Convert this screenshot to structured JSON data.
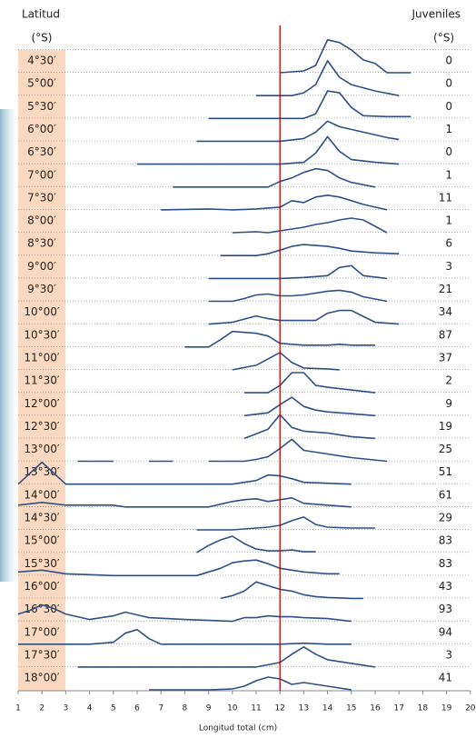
{
  "chart_data": {
    "type": "ridgeline",
    "header_left": "Latitud",
    "left_unit": "(°S)",
    "header_right": "Juveniles",
    "right_unit": "(°S)",
    "xlabel": "Longitud total (cm)",
    "xlim": [
      1,
      20
    ],
    "xticks": [
      1,
      2,
      3,
      4,
      5,
      6,
      7,
      8,
      9,
      10,
      11,
      12,
      13,
      14,
      15,
      16,
      17,
      18,
      19,
      20
    ],
    "ylim": [
      0,
      25
    ],
    "reference_x": 12,
    "reference_color": "#c00000",
    "color": "#2f4f87",
    "juveniles": [
      0,
      0,
      0,
      1,
      0,
      1,
      11,
      1,
      6,
      3,
      21,
      34,
      87,
      37,
      2,
      9,
      19,
      25,
      51,
      61,
      29,
      83,
      83,
      43,
      93,
      94,
      3,
      41
    ],
    "series": [
      {
        "name": "4°30′",
        "x": [
          12,
          13,
          13.5,
          14,
          14.5,
          15,
          15.5,
          16,
          16.5,
          17.5
        ],
        "values": [
          0,
          2,
          8,
          36,
          33,
          25,
          14,
          10,
          0,
          0
        ]
      },
      {
        "name": "5°00′",
        "x": [
          11,
          12.5,
          13,
          13.5,
          14,
          14.5,
          15,
          16,
          17
        ],
        "values": [
          0,
          0,
          3,
          12,
          38,
          20,
          12,
          5,
          0
        ]
      },
      {
        "name": "5°30′",
        "x": [
          9,
          13,
          13.5,
          14,
          14.5,
          15,
          15.5,
          16.5,
          17.5
        ],
        "values": [
          0,
          0,
          5,
          30,
          28,
          12,
          3,
          2,
          2
        ]
      },
      {
        "name": "6°00′",
        "x": [
          8.5,
          12,
          13,
          13.5,
          14,
          14.5,
          15,
          15.5,
          16.5,
          17
        ],
        "values": [
          0,
          0,
          3,
          10,
          22,
          16,
          13,
          10,
          4,
          2
        ]
      },
      {
        "name": "6°30′",
        "x": [
          6,
          12,
          13,
          13.5,
          14,
          14.5,
          15,
          16,
          17
        ],
        "values": [
          0,
          0,
          2,
          12,
          30,
          14,
          5,
          2,
          0
        ]
      },
      {
        "name": "7°00′",
        "x": [
          7.5,
          11.5,
          12,
          12.5,
          13,
          13.5,
          14,
          14.5,
          15,
          16
        ],
        "values": [
          0,
          0,
          6,
          10,
          16,
          20,
          18,
          10,
          5,
          0
        ]
      },
      {
        "name": "7°30′",
        "x": [
          7,
          9,
          10,
          11,
          12,
          12.5,
          13,
          13.5,
          14,
          14.5,
          15,
          15.5,
          16.5
        ],
        "values": [
          0,
          1,
          0,
          1,
          3,
          10,
          8,
          14,
          16,
          14,
          10,
          6,
          0
        ]
      },
      {
        "name": "8°00′",
        "x": [
          10,
          11,
          11.5,
          12,
          12.5,
          13,
          13.5,
          14,
          14.5,
          15,
          15.5,
          16.5
        ],
        "values": [
          0,
          1,
          0,
          2,
          4,
          6,
          9,
          11,
          14,
          16,
          14,
          0
        ]
      },
      {
        "name": "8°30′",
        "x": [
          9.5,
          11,
          11.5,
          12,
          12.5,
          13,
          13.5,
          14,
          14.5,
          15,
          16,
          17
        ],
        "values": [
          0,
          0,
          2,
          6,
          10,
          12,
          11,
          10,
          8,
          5,
          3,
          2
        ]
      },
      {
        "name": "9°00′",
        "x": [
          9,
          12,
          13,
          13.5,
          14,
          14.5,
          15,
          15.5,
          16.5
        ],
        "values": [
          0,
          0,
          1,
          2,
          3,
          12,
          14,
          3,
          0
        ]
      },
      {
        "name": "9°30′",
        "x": [
          9,
          10,
          10.5,
          11,
          11.5,
          12,
          12.5,
          13,
          14,
          14.5,
          15,
          15.5,
          16.5
        ],
        "values": [
          0,
          0,
          3,
          7,
          8,
          6,
          6,
          7,
          11,
          12,
          10,
          5,
          0
        ]
      },
      {
        "name": "10°00′",
        "x": [
          9,
          10,
          11,
          11.5,
          12,
          12.5,
          13,
          13.5,
          14,
          14.5,
          15,
          16,
          17
        ],
        "values": [
          0,
          2,
          9,
          6,
          4,
          4,
          4,
          4,
          12,
          15,
          15,
          2,
          0
        ]
      },
      {
        "name": "10°30′",
        "x": [
          8,
          9,
          9.5,
          10,
          10.5,
          11,
          11.5,
          12,
          13,
          14,
          14.5,
          15,
          16
        ],
        "values": [
          0,
          0,
          8,
          17,
          16,
          15,
          12,
          4,
          2,
          2,
          3,
          2,
          2
        ]
      },
      {
        "name": "11°00′",
        "x": [
          10,
          11,
          11.5,
          12,
          12.5,
          13,
          14,
          14.5
        ],
        "values": [
          0,
          5,
          12,
          19,
          8,
          2,
          1,
          0
        ]
      },
      {
        "name": "11°30′",
        "x": [
          10.5,
          11.5,
          12,
          12.5,
          13,
          13.5,
          14,
          15,
          16
        ],
        "values": [
          0,
          0,
          8,
          22,
          22,
          8,
          6,
          3,
          0
        ]
      },
      {
        "name": "12°00′",
        "x": [
          10.5,
          11.5,
          12,
          12.5,
          13,
          13.5,
          14,
          15,
          16
        ],
        "values": [
          0,
          3,
          12,
          20,
          10,
          6,
          4,
          2,
          0
        ]
      },
      {
        "name": "12°30′",
        "x": [
          10.5,
          11,
          11.5,
          12,
          12.5,
          13,
          14,
          15,
          16
        ],
        "values": [
          0,
          5,
          10,
          26,
          12,
          8,
          6,
          2,
          0
        ]
      },
      {
        "name": "13°00′",
        "x": [
          3.5,
          5,
          5.8,
          6.5,
          7.5,
          8.2,
          9,
          10.5,
          11,
          11.5,
          12,
          12.5,
          13,
          14,
          15,
          16.5
        ],
        "values": [
          0,
          0,
          null,
          0,
          0,
          null,
          0,
          0,
          2,
          5,
          14,
          24,
          12,
          8,
          4,
          0
        ]
      },
      {
        "name": "13°30′",
        "x": [
          1,
          2,
          3,
          8,
          10,
          11,
          11.5,
          12,
          12.5,
          13,
          14,
          15
        ],
        "values": [
          0,
          24,
          0,
          0,
          0,
          4,
          10,
          9,
          6,
          2,
          1,
          0
        ]
      },
      {
        "name": "14°00′",
        "x": [
          1,
          2,
          3,
          4,
          5,
          5.5,
          7.5,
          9,
          10,
          10.5,
          11,
          11.5,
          12,
          12.5,
          13,
          14,
          15
        ],
        "values": [
          2,
          5,
          2,
          2,
          2,
          0,
          0,
          0,
          6,
          8,
          9,
          6,
          8,
          10,
          4,
          2,
          0
        ]
      },
      {
        "name": "14°30′",
        "x": [
          8.5,
          10,
          11,
          11.5,
          12,
          12.5,
          13,
          13.5,
          14,
          15,
          16
        ],
        "values": [
          0,
          0,
          2,
          3,
          5,
          10,
          14,
          6,
          3,
          2,
          2
        ]
      },
      {
        "name": "15°00′",
        "x": [
          8.5,
          9,
          9.5,
          10,
          10.5,
          11,
          11.5,
          12,
          12.5,
          13,
          13.5
        ],
        "values": [
          0,
          8,
          14,
          18,
          10,
          4,
          2,
          2,
          3,
          1,
          1
        ]
      },
      {
        "name": "15°30′",
        "x": [
          1,
          2,
          3,
          5,
          7.5,
          8.5,
          9.5,
          10,
          10.5,
          11,
          11.5,
          12,
          13,
          14,
          14.5
        ],
        "values": [
          4,
          6,
          2,
          0,
          0,
          0,
          8,
          14,
          16,
          17,
          13,
          8,
          4,
          2,
          2
        ]
      },
      {
        "name": "16°00′",
        "x": [
          9.5,
          10,
          10.5,
          11,
          11.5,
          12,
          12.5,
          13,
          13.5,
          14,
          15,
          15.5
        ],
        "values": [
          0,
          3,
          8,
          18,
          14,
          10,
          8,
          4,
          2,
          1,
          0,
          0
        ]
      },
      {
        "name": "16°30′",
        "x": [
          1,
          1.5,
          2,
          2.5,
          3,
          3.5,
          4,
          5,
          5.5,
          6.5,
          8,
          9,
          10,
          10.5,
          11,
          11.5,
          12,
          12.5,
          13,
          14,
          15
        ],
        "values": [
          8,
          12,
          18,
          14,
          8,
          5,
          2,
          6,
          10,
          4,
          2,
          1,
          0,
          4,
          4,
          6,
          5,
          5,
          4,
          3,
          0
        ]
      },
      {
        "name": "17°00′",
        "x": [
          1,
          2,
          4,
          5,
          5.5,
          6,
          6.5,
          7,
          12,
          13,
          14,
          15
        ],
        "values": [
          0,
          0,
          0,
          2,
          12,
          16,
          6,
          0,
          0,
          1,
          0,
          0
        ]
      },
      {
        "name": "17°30′",
        "x": [
          3.5,
          8,
          11,
          12,
          12.5,
          13,
          13.5,
          14,
          15,
          16
        ],
        "values": [
          0,
          0,
          0,
          5,
          14,
          22,
          14,
          8,
          4,
          0
        ]
      },
      {
        "name": "18°00′",
        "x": [
          6.5,
          9,
          10,
          10.5,
          11,
          11.5,
          12,
          12.5,
          13,
          14,
          15
        ],
        "values": [
          0,
          0,
          1,
          4,
          10,
          14,
          12,
          6,
          8,
          4,
          0
        ]
      }
    ]
  }
}
